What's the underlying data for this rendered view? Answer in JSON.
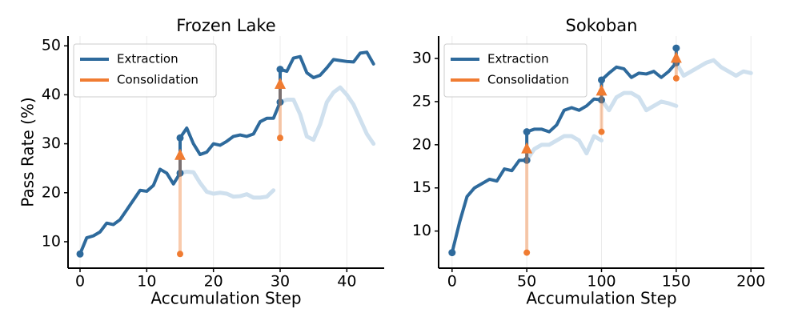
{
  "chart_data": [
    {
      "type": "line",
      "title": "Frozen Lake",
      "xlabel": "Accumulation Step",
      "ylabel": "Pass Rate (%)",
      "xlim": [
        -1.8,
        45.6
      ],
      "ylim": [
        4.6,
        52
      ],
      "xticks": [
        0,
        10,
        20,
        30,
        40
      ],
      "yticks": [
        10,
        20,
        30,
        40,
        50
      ],
      "grid": "x",
      "legend": "upper left",
      "series": [
        {
          "color": "#cfe0ee",
          "x": [
            15,
            16,
            17,
            18,
            19,
            20,
            21,
            22,
            23,
            24,
            25,
            26,
            27,
            28,
            29
          ],
          "values": [
            24,
            24.3,
            24.2,
            22,
            20.2,
            19.8,
            20,
            19.8,
            19.2,
            19.3,
            19.7,
            19,
            19,
            19.2,
            20.5
          ]
        },
        {
          "color": "#cfe0ee",
          "x": [
            30,
            31,
            32,
            33,
            34,
            35,
            36,
            37,
            38,
            39,
            40,
            41,
            42,
            43,
            44
          ],
          "values": [
            38.5,
            39,
            39,
            36,
            31.5,
            30.8,
            34,
            38.5,
            40.5,
            41.5,
            40,
            38,
            35,
            32,
            30
          ]
        },
        {
          "name": "Extraction",
          "color": "#2e6a9c",
          "x": [
            0,
            1,
            2,
            3,
            4,
            5,
            6,
            7,
            8,
            9,
            10,
            11,
            12,
            13,
            14,
            15,
            15,
            16,
            17,
            18,
            19,
            20,
            21,
            22,
            23,
            24,
            25,
            26,
            27,
            28,
            29,
            30,
            30,
            31,
            32,
            33,
            34,
            35,
            36,
            37,
            38,
            39,
            40,
            41,
            42,
            43,
            44
          ],
          "values": [
            7.5,
            10.8,
            11.2,
            12,
            13.8,
            13.5,
            14.5,
            16.5,
            18.5,
            20.5,
            20.3,
            21.5,
            24.8,
            24,
            21.8,
            24,
            31.2,
            33.2,
            30,
            27.8,
            28.3,
            30,
            29.7,
            30.5,
            31.5,
            31.8,
            31.5,
            32,
            34.5,
            35.2,
            35.2,
            38.5,
            45.2,
            44.8,
            47.5,
            47.8,
            44.5,
            43.5,
            44,
            45.5,
            47.2,
            47,
            46.8,
            46.7,
            48.5,
            48.7,
            46.3
          ]
        },
        {
          "name": "Consolidation",
          "color": "#f07c32",
          "arrows": [
            {
              "x": 15,
              "from": 7.5,
              "to": 29
            },
            {
              "x": 30,
              "from": 31.2,
              "to": 43.5
            }
          ]
        }
      ]
    },
    {
      "type": "line",
      "title": "Sokoban",
      "xlabel": "Accumulation Step",
      "xlim": [
        -9,
        209
      ],
      "ylim": [
        5.7,
        32.6
      ],
      "xticks": [
        0,
        50,
        100,
        150,
        200
      ],
      "yticks": [
        10,
        15,
        20,
        25,
        30
      ],
      "grid": "x",
      "legend": "upper left",
      "series": [
        {
          "color": "#cfe0ee",
          "x": [
            50,
            55,
            60,
            65,
            70,
            75,
            80,
            85,
            90,
            95,
            100
          ],
          "values": [
            18.2,
            19.5,
            20,
            20,
            20.5,
            21,
            21,
            20.5,
            19,
            21,
            20.5
          ]
        },
        {
          "color": "#cfe0ee",
          "x": [
            100,
            105,
            110,
            115,
            120,
            125,
            130,
            135,
            140,
            145,
            150
          ],
          "values": [
            25.2,
            24,
            25.5,
            26,
            26,
            25.5,
            24,
            24.5,
            25,
            24.8,
            24.5
          ]
        },
        {
          "color": "#cfe0ee",
          "x": [
            150,
            155,
            160,
            165,
            170,
            175,
            180,
            185,
            190,
            195,
            200
          ],
          "values": [
            29.5,
            28,
            28.5,
            29,
            29.5,
            29.8,
            29,
            28.5,
            28,
            28.5,
            28.3
          ]
        },
        {
          "name": "Extraction",
          "color": "#2e6a9c",
          "x": [
            0,
            5,
            10,
            15,
            20,
            25,
            30,
            35,
            40,
            45,
            50,
            50,
            55,
            60,
            65,
            70,
            75,
            80,
            85,
            90,
            95,
            100,
            100,
            105,
            110,
            115,
            120,
            125,
            130,
            135,
            140,
            145,
            150,
            150
          ],
          "values": [
            7.5,
            11,
            14,
            15,
            15.5,
            16,
            15.8,
            17.2,
            17,
            18.2,
            18.2,
            21.5,
            21.8,
            21.8,
            21.5,
            22.3,
            24,
            24.3,
            24,
            24.5,
            25.3,
            25.2,
            27.5,
            28.3,
            29,
            28.8,
            27.8,
            28.3,
            28.2,
            28.5,
            27.8,
            28.5,
            29.5,
            31.2
          ]
        },
        {
          "name": "Consolidation",
          "color": "#f07c32",
          "arrows": [
            {
              "x": 50,
              "from": 7.5,
              "to": 20.3
            },
            {
              "x": 100,
              "from": 21.5,
              "to": 27
            },
            {
              "x": 150,
              "from": 27.7,
              "to": 30.8
            }
          ]
        }
      ]
    }
  ]
}
